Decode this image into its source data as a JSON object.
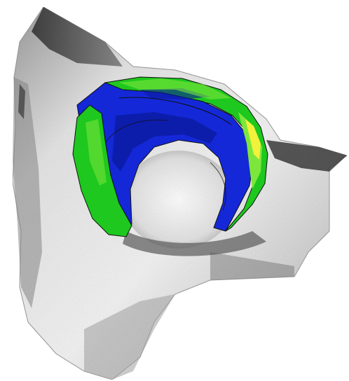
{
  "figure": {
    "subject": "3d-surface-rendering-with-color-overlay",
    "colors": {
      "background": "#ffffff",
      "surface_light": "#f2f2f2",
      "surface_mid": "#b8b8b8",
      "surface_dark": "#3a3a3a",
      "overlay_blue": "#1428d8",
      "overlay_dark_blue": "#0a1a9c",
      "overlay_green": "#1ec81e",
      "overlay_light_green": "#7de63c",
      "overlay_yellow": "#f2f23c",
      "contour": "#101010"
    }
  }
}
